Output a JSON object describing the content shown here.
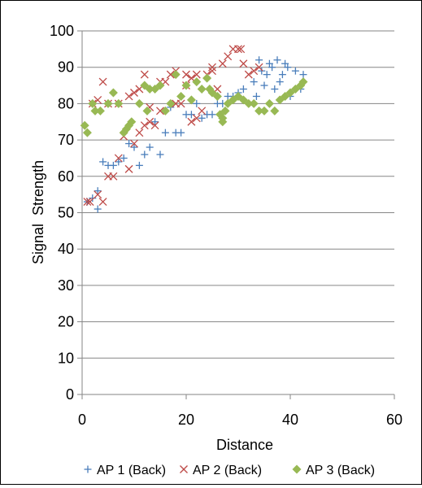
{
  "chart_data": {
    "type": "scatter",
    "title": "",
    "xlabel": "Distance",
    "ylabel": "Signal  Strength",
    "xlim": [
      0,
      60
    ],
    "ylim": [
      0,
      100
    ],
    "xticks": [
      0,
      20,
      40,
      60
    ],
    "yticks": [
      0,
      10,
      20,
      30,
      40,
      50,
      60,
      70,
      80,
      90,
      100
    ],
    "grid": "horizontal",
    "legend_position": "bottom",
    "series": [
      {
        "name": "AP 1 (Back)",
        "marker": "plus",
        "color": "#4a7ebb",
        "points": [
          [
            1,
            53
          ],
          [
            2,
            54
          ],
          [
            3,
            51
          ],
          [
            3,
            56
          ],
          [
            4,
            64
          ],
          [
            5,
            63
          ],
          [
            6,
            63
          ],
          [
            7,
            64
          ],
          [
            8,
            65
          ],
          [
            9,
            69
          ],
          [
            10,
            68
          ],
          [
            11,
            63
          ],
          [
            12,
            66
          ],
          [
            13,
            68
          ],
          [
            14,
            75
          ],
          [
            15,
            66
          ],
          [
            16,
            72
          ],
          [
            17,
            79
          ],
          [
            18,
            72
          ],
          [
            19,
            72
          ],
          [
            20,
            77
          ],
          [
            21,
            77
          ],
          [
            22,
            80
          ],
          [
            23,
            76
          ],
          [
            24,
            77
          ],
          [
            25,
            77
          ],
          [
            26,
            80
          ],
          [
            27,
            80
          ],
          [
            28,
            82
          ],
          [
            29,
            82
          ],
          [
            30,
            83
          ],
          [
            31,
            84
          ],
          [
            32,
            80
          ],
          [
            33,
            86
          ],
          [
            33.5,
            82
          ],
          [
            34,
            92
          ],
          [
            34.5,
            89
          ],
          [
            35,
            85
          ],
          [
            35.5,
            88
          ],
          [
            36,
            91
          ],
          [
            36.5,
            90
          ],
          [
            37,
            84
          ],
          [
            37.5,
            92
          ],
          [
            38,
            86
          ],
          [
            38.5,
            88
          ],
          [
            39,
            91
          ],
          [
            39.5,
            90
          ],
          [
            40,
            82
          ],
          [
            41,
            89
          ],
          [
            42,
            84
          ],
          [
            42.5,
            88
          ]
        ]
      },
      {
        "name": "AP 2 (Back)",
        "marker": "x",
        "color": "#be4b48",
        "points": [
          [
            1,
            53
          ],
          [
            1.5,
            53
          ],
          [
            2,
            80
          ],
          [
            3,
            55
          ],
          [
            3,
            81
          ],
          [
            4,
            86
          ],
          [
            4,
            53
          ],
          [
            5,
            60
          ],
          [
            5,
            80
          ],
          [
            6,
            60
          ],
          [
            7,
            65
          ],
          [
            7,
            80
          ],
          [
            8,
            71
          ],
          [
            9,
            62
          ],
          [
            9,
            82
          ],
          [
            10,
            69
          ],
          [
            10,
            83
          ],
          [
            11,
            84
          ],
          [
            11,
            72
          ],
          [
            12,
            88
          ],
          [
            12,
            74
          ],
          [
            13,
            75
          ],
          [
            13,
            79
          ],
          [
            14,
            74
          ],
          [
            15,
            86
          ],
          [
            15,
            78
          ],
          [
            16,
            86
          ],
          [
            17,
            88
          ],
          [
            18,
            80
          ],
          [
            18,
            89
          ],
          [
            19,
            80
          ],
          [
            20,
            85
          ],
          [
            20,
            88
          ],
          [
            21,
            75
          ],
          [
            21,
            87
          ],
          [
            22,
            88
          ],
          [
            22,
            76
          ],
          [
            23,
            78
          ],
          [
            24,
            88
          ],
          [
            25,
            89
          ],
          [
            25,
            90
          ],
          [
            26,
            84
          ],
          [
            27,
            91
          ],
          [
            28,
            93
          ],
          [
            29,
            95
          ],
          [
            30,
            95
          ],
          [
            30.5,
            95
          ],
          [
            31,
            91
          ],
          [
            32,
            88
          ],
          [
            33,
            89
          ],
          [
            34,
            90
          ]
        ]
      },
      {
        "name": "AP 3 (Back)",
        "marker": "diamond",
        "color": "#98b954",
        "points": [
          [
            0.5,
            74
          ],
          [
            1,
            72
          ],
          [
            2,
            80
          ],
          [
            2.5,
            78
          ],
          [
            3.5,
            78
          ],
          [
            5,
            80
          ],
          [
            6,
            83
          ],
          [
            7,
            80
          ],
          [
            8,
            72
          ],
          [
            8.5,
            73
          ],
          [
            9,
            74
          ],
          [
            9.5,
            75
          ],
          [
            11,
            80
          ],
          [
            12,
            85
          ],
          [
            12.5,
            78
          ],
          [
            13,
            84
          ],
          [
            14,
            84
          ],
          [
            15,
            85
          ],
          [
            16,
            78
          ],
          [
            17,
            80
          ],
          [
            18,
            88
          ],
          [
            19,
            82
          ],
          [
            20,
            85
          ],
          [
            21,
            81
          ],
          [
            22,
            86
          ],
          [
            23,
            84
          ],
          [
            24,
            87
          ],
          [
            24.5,
            84
          ],
          [
            25,
            83
          ],
          [
            26,
            82
          ],
          [
            26.5,
            77
          ],
          [
            27,
            76
          ],
          [
            27.5,
            78
          ],
          [
            28,
            80
          ],
          [
            29,
            81
          ],
          [
            30,
            82
          ],
          [
            31,
            81
          ],
          [
            32,
            80
          ],
          [
            33,
            80
          ],
          [
            34,
            78
          ],
          [
            35,
            78
          ],
          [
            36,
            80
          ],
          [
            37,
            78
          ],
          [
            38,
            81
          ],
          [
            39,
            82
          ],
          [
            40,
            83
          ],
          [
            41,
            84
          ],
          [
            42,
            85
          ],
          [
            42.5,
            86
          ],
          [
            27,
            75
          ]
        ]
      }
    ]
  },
  "legend": {
    "ap1": "AP 1 (Back)",
    "ap2": "AP 2 (Back)",
    "ap3": "AP 3 (Back)"
  }
}
